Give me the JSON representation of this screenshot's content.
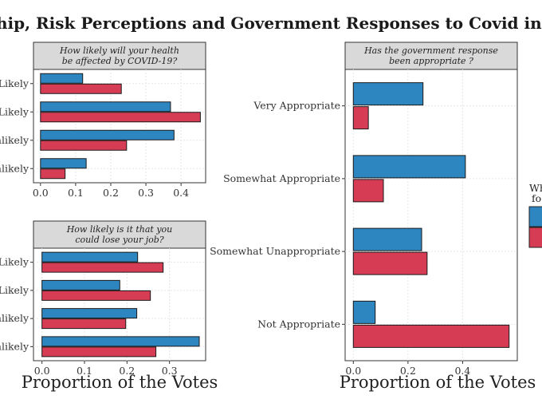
{
  "chart_data": {
    "type": "bar",
    "orientation": "horizontal",
    "title": "hip, Risk Perceptions and Government Responses to Covid in Brazil",
    "xlabel": "Proportion of the Votes",
    "grid": true,
    "legend": {
      "title_lines": [
        "Wh",
        "fo"
      ],
      "placement": "right, partially cut off"
    },
    "colors": {
      "series_1": "#2e86c1",
      "series_2": "#d63c54",
      "strip": "#d9d9d9",
      "grid": "#e6e6e6"
    },
    "panels": [
      {
        "strip_lines": [
          "How likely will your health",
          "be affected by COVID-19?"
        ],
        "categories": [
          "Likely",
          "Likely",
          "nlikely",
          "nlikely"
        ],
        "xlim": [
          -0.02,
          0.47
        ],
        "xticks": [
          "0.0",
          "0.1",
          "0.2",
          "0.3",
          "0.4"
        ],
        "xtick_values": [
          0,
          0.1,
          0.2,
          0.3,
          0.4
        ],
        "series": [
          {
            "values": [
              0.12,
              0.37,
              0.38,
              0.13
            ]
          },
          {
            "values": [
              0.23,
              0.455,
              0.245,
              0.07
            ]
          }
        ]
      },
      {
        "strip_lines": [
          "How likely is it that you",
          "could lose your job?"
        ],
        "categories": [
          "Likely",
          "Likely",
          "nlikely",
          "nlikely"
        ],
        "xlim": [
          -0.02,
          0.385
        ],
        "xticks": [
          "0.0",
          "0.1",
          "0.2",
          "0.3"
        ],
        "xtick_values": [
          0,
          0.1,
          0.2,
          0.3
        ],
        "series": [
          {
            "values": [
              0.225,
              0.183,
              0.223,
              0.37
            ]
          },
          {
            "values": [
              0.285,
              0.255,
              0.197,
              0.268
            ]
          }
        ]
      },
      {
        "strip_lines": [
          "Has the government response",
          "been appropriate ?"
        ],
        "categories": [
          "Very Appropriate",
          "Somewhat Appropriate",
          "Somewhat Unappropriate",
          "Not Appropriate"
        ],
        "xlim": [
          -0.03,
          0.6
        ],
        "xticks": [
          "0.0",
          "0.2",
          "0.4"
        ],
        "xtick_values": [
          0,
          0.2,
          0.4
        ],
        "series": [
          {
            "values": [
              0.255,
              0.41,
              0.25,
              0.08
            ]
          },
          {
            "values": [
              0.055,
              0.11,
              0.27,
              0.57
            ]
          }
        ]
      }
    ]
  }
}
